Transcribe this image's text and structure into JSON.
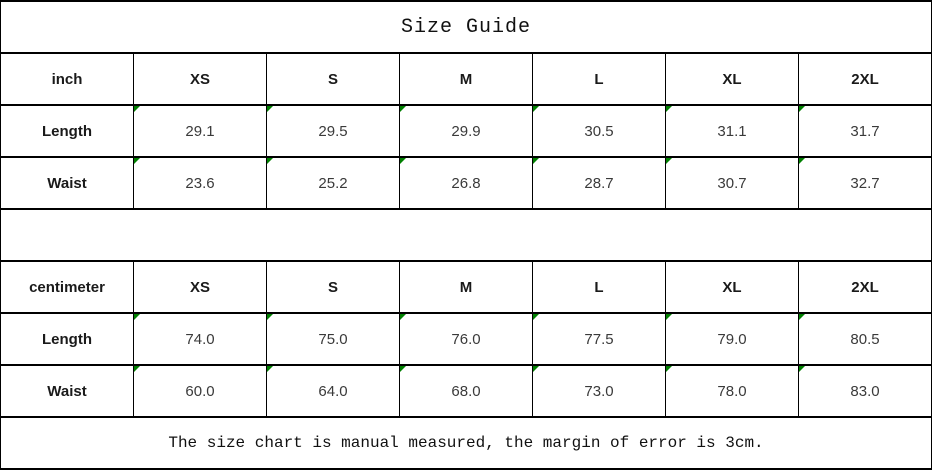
{
  "title": "Size Guide",
  "footer_note": "The size chart is manual measured, the margin of error is 3cm.",
  "colors": {
    "flag_triangle": "#008000",
    "border": "#000000",
    "background": "#ffffff",
    "header_text": "#1a1a1a",
    "value_text": "#3a3a3a"
  },
  "tables": [
    {
      "unit_label": "inch",
      "sizes": [
        "XS",
        "S",
        "M",
        "L",
        "XL",
        "2XL"
      ],
      "rows": [
        {
          "label": "Length",
          "values": [
            "29.1",
            "29.5",
            "29.9",
            "30.5",
            "31.1",
            "31.7"
          ]
        },
        {
          "label": "Waist",
          "values": [
            "23.6",
            "25.2",
            "26.8",
            "28.7",
            "30.7",
            "32.7"
          ]
        }
      ]
    },
    {
      "unit_label": "centimeter",
      "sizes": [
        "XS",
        "S",
        "M",
        "L",
        "XL",
        "2XL"
      ],
      "rows": [
        {
          "label": "Length",
          "values": [
            "74.0",
            "75.0",
            "76.0",
            "77.5",
            "79.0",
            "80.5"
          ]
        },
        {
          "label": "Waist",
          "values": [
            "60.0",
            "64.0",
            "68.0",
            "73.0",
            "78.0",
            "83.0"
          ]
        }
      ]
    }
  ]
}
